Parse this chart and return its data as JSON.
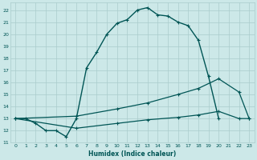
{
  "xlabel": "Humidex (Indice chaleur)",
  "bg_color": "#cce8e8",
  "grid_color": "#aacccc",
  "line_color": "#005555",
  "xlim": [
    -0.5,
    23.5
  ],
  "ylim": [
    11,
    22.6
  ],
  "yticks": [
    11,
    12,
    13,
    14,
    15,
    16,
    17,
    18,
    19,
    20,
    21,
    22
  ],
  "xticks": [
    0,
    1,
    2,
    3,
    4,
    5,
    6,
    7,
    8,
    9,
    10,
    11,
    12,
    13,
    14,
    15,
    16,
    17,
    18,
    19,
    20,
    21,
    22,
    23
  ],
  "series": [
    {
      "x": [
        0,
        1,
        2,
        3,
        4,
        5,
        6,
        7,
        8,
        9,
        10,
        11,
        12,
        13,
        14,
        15,
        16,
        17,
        18,
        19,
        20
      ],
      "y": [
        13.0,
        13.0,
        12.6,
        12.0,
        12.0,
        11.5,
        13.0,
        17.2,
        18.5,
        20.0,
        20.9,
        21.2,
        22.0,
        22.2,
        21.6,
        21.5,
        21.0,
        20.7,
        19.5,
        16.5,
        13.0
      ],
      "marker": "+",
      "markersize": 3.5,
      "linewidth": 1.0
    },
    {
      "x": [
        0,
        6,
        10,
        13,
        16,
        18,
        20,
        22,
        23
      ],
      "y": [
        13.0,
        13.2,
        13.8,
        14.3,
        15.0,
        15.5,
        16.3,
        15.2,
        13.0
      ],
      "marker": "+",
      "markersize": 3.5,
      "linewidth": 0.9
    },
    {
      "x": [
        0,
        6,
        10,
        13,
        16,
        18,
        20,
        22,
        23
      ],
      "y": [
        13.0,
        12.2,
        12.6,
        12.9,
        13.1,
        13.3,
        13.6,
        13.0,
        13.0
      ],
      "marker": "+",
      "markersize": 3.5,
      "linewidth": 0.9
    }
  ]
}
